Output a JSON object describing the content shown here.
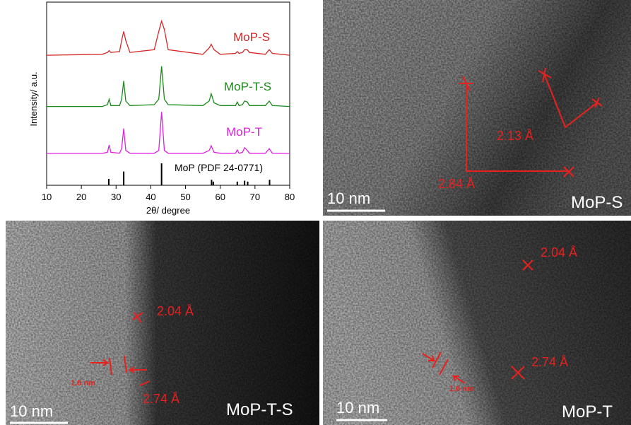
{
  "chart_data": {
    "type": "line",
    "xlabel": "2θ/ degree",
    "ylabel": "Intensity/ a.u.",
    "xlim": [
      10,
      80
    ],
    "xticks": [
      10,
      20,
      30,
      40,
      50,
      60,
      70,
      80
    ],
    "ylim": [
      0,
      100
    ],
    "x": [
      10,
      26,
      27.5,
      28,
      28.5,
      31,
      31.6,
      32.2,
      32.8,
      34,
      41,
      42.3,
      43.1,
      43.9,
      45,
      55,
      56.8,
      57.4,
      58.2,
      60,
      64.4,
      64.9,
      65.4,
      66.4,
      67,
      67.8,
      68.4,
      73,
      74.1,
      75,
      80
    ],
    "series": [
      {
        "name": "MoP-S",
        "color": "#d62728",
        "values": [
          71,
          71.5,
          72.5,
          73.5,
          72.5,
          73,
          79,
          84,
          79,
          72.5,
          74,
          84,
          89.6,
          85,
          74,
          71.5,
          75,
          77,
          74,
          71.5,
          72,
          73,
          72,
          72.5,
          74,
          74,
          72.5,
          71.5,
          74,
          72,
          71
        ]
      },
      {
        "name": "MoP-T-S",
        "color": "#1a8a1a",
        "values": [
          43,
          43,
          44,
          47,
          43.5,
          43.5,
          47,
          57,
          46,
          43.5,
          44,
          47,
          65,
          47,
          44,
          43.5,
          46,
          50,
          45,
          43.5,
          43.5,
          45.5,
          43.5,
          44,
          46,
          45.5,
          43.5,
          43.5,
          46,
          43.5,
          43
        ]
      },
      {
        "name": "MoP-T",
        "color": "#e020e0",
        "values": [
          17.4,
          17.4,
          18,
          22,
          18,
          17.5,
          20,
          31,
          19,
          17.5,
          17.5,
          19,
          40,
          19,
          17.5,
          17.5,
          19,
          21.6,
          18,
          17.5,
          17.5,
          19.3,
          17.5,
          18,
          20.5,
          19,
          17.5,
          17.5,
          20,
          17.5,
          17.4
        ]
      }
    ],
    "sticks": {
      "name": "MoP (PDF 24-0771)",
      "color": "#000000",
      "x": [
        27.9,
        32.2,
        43.1,
        57.5,
        58.0,
        64.9,
        67.0,
        67.9,
        74.2
      ],
      "values": [
        3.5,
        7.5,
        12,
        3,
        2,
        2,
        2.5,
        2,
        3
      ]
    }
  },
  "panels": [
    {
      "scale_bar": "10 nm",
      "label": "MoP-S",
      "annotations": [
        "2.84 Å",
        "2.13 Å"
      ]
    },
    {
      "scale_bar": "10 nm",
      "label": "MoP-T-S",
      "annotations": [
        "2.04 Å",
        "2.74 Å",
        "1.8 nm"
      ]
    },
    {
      "scale_bar": "10 nm",
      "label": "MoP-T",
      "annotations": [
        "2.04 Å",
        "2.74 Å",
        "1.6 nm"
      ]
    }
  ]
}
